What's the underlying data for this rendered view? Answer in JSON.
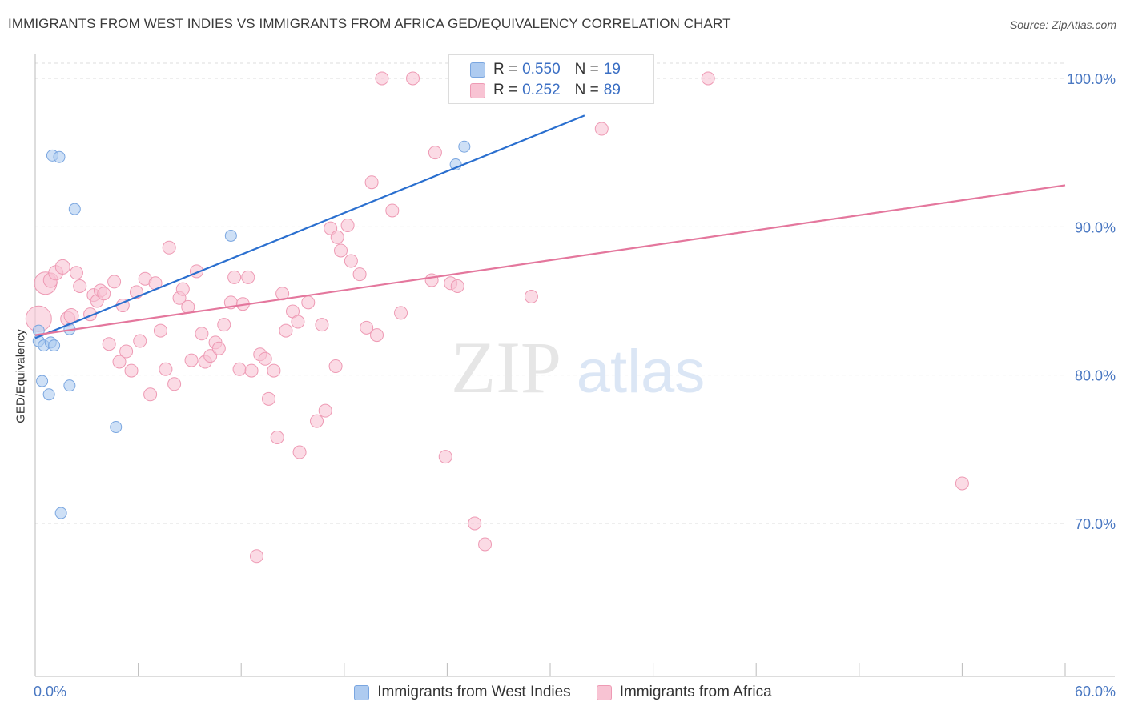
{
  "title": "IMMIGRANTS FROM WEST INDIES VS IMMIGRANTS FROM AFRICA GED/EQUIVALENCY CORRELATION CHART",
  "source": "Source: ZipAtlas.com",
  "watermark": {
    "zip": "ZIP",
    "atlas": "atlas"
  },
  "legend_top": [
    {
      "r_label": "R =",
      "r_value": "0.550",
      "n_label": "N =",
      "n_value": "19",
      "color": "#aecbf0",
      "border": "#7aa6e0"
    },
    {
      "r_label": "R =",
      "r_value": "0.252",
      "n_label": "N =",
      "n_value": "89",
      "color": "#f8c3d3",
      "border": "#ee9ab4"
    }
  ],
  "chart_data": {
    "type": "scatter",
    "xlabel": "",
    "ylabel": "GED/Equivalency",
    "xlim": [
      0,
      60
    ],
    "ylim": [
      60.5,
      101.5
    ],
    "x_ticks": [
      0,
      6,
      12,
      18,
      24,
      30,
      36,
      42,
      48,
      54,
      60
    ],
    "x_tick_labels": [
      {
        "value": 0,
        "label": "0.0%"
      },
      {
        "value": 60,
        "label": "60.0%"
      }
    ],
    "y_ticks": [
      {
        "value": 100,
        "label": "100.0%"
      },
      {
        "value": 90,
        "label": "90.0%"
      },
      {
        "value": 80,
        "label": "80.0%"
      },
      {
        "value": 70,
        "label": "70.0%"
      }
    ],
    "grid": "horizontal dashed",
    "legend_position": "bottom",
    "series": [
      {
        "name": "Immigrants from West Indies",
        "color": "#7aa6e0",
        "fill": "#aecbf0",
        "line_color": "#2a6fcf",
        "trend": {
          "x0": 0,
          "y0": 82.5,
          "x1": 32,
          "y1": 97.5
        },
        "points": [
          [
            0.2,
            83.0,
            7
          ],
          [
            0.2,
            82.3,
            7
          ],
          [
            0.5,
            82.0,
            7
          ],
          [
            0.4,
            79.6,
            7
          ],
          [
            0.8,
            78.7,
            7
          ],
          [
            0.9,
            82.2,
            7
          ],
          [
            1.0,
            94.8,
            7
          ],
          [
            1.1,
            82.0,
            7
          ],
          [
            1.4,
            94.7,
            7
          ],
          [
            1.5,
            70.7,
            7
          ],
          [
            2.0,
            83.1,
            7
          ],
          [
            2.0,
            79.3,
            7
          ],
          [
            2.3,
            91.2,
            7
          ],
          [
            4.7,
            76.5,
            7
          ],
          [
            11.4,
            89.4,
            7
          ],
          [
            24.5,
            94.2,
            7
          ],
          [
            25.0,
            95.4,
            7
          ],
          [
            30.6,
            99.6,
            7
          ],
          [
            32.5,
            99.8,
            7
          ]
        ]
      },
      {
        "name": "Immigrants from Africa",
        "color": "#ee9ab4",
        "fill": "#f8c3d3",
        "line_color": "#e4779d",
        "trend": {
          "x0": 0,
          "y0": 82.7,
          "x1": 60,
          "y1": 92.8
        },
        "points": [
          [
            0.2,
            83.8,
            16
          ],
          [
            0.6,
            86.2,
            14
          ],
          [
            0.9,
            86.4,
            9
          ],
          [
            1.2,
            86.9,
            9
          ],
          [
            1.6,
            87.3,
            9
          ],
          [
            1.9,
            83.8,
            9
          ],
          [
            2.1,
            84.0,
            9
          ],
          [
            2.4,
            86.9,
            8
          ],
          [
            2.6,
            86.0,
            8
          ],
          [
            3.2,
            84.1,
            8
          ],
          [
            3.4,
            85.4,
            8
          ],
          [
            3.6,
            85.0,
            8
          ],
          [
            3.8,
            85.7,
            8
          ],
          [
            4.0,
            85.5,
            8
          ],
          [
            4.3,
            82.1,
            8
          ],
          [
            4.6,
            86.3,
            8
          ],
          [
            4.9,
            80.9,
            8
          ],
          [
            5.1,
            84.7,
            8
          ],
          [
            5.3,
            81.6,
            8
          ],
          [
            5.6,
            80.3,
            8
          ],
          [
            5.9,
            85.6,
            8
          ],
          [
            6.1,
            82.3,
            8
          ],
          [
            6.4,
            86.5,
            8
          ],
          [
            6.7,
            78.7,
            8
          ],
          [
            7.0,
            86.2,
            8
          ],
          [
            7.3,
            83.0,
            8
          ],
          [
            7.6,
            80.4,
            8
          ],
          [
            7.8,
            88.6,
            8
          ],
          [
            8.1,
            79.4,
            8
          ],
          [
            8.4,
            85.2,
            8
          ],
          [
            8.6,
            85.8,
            8
          ],
          [
            8.9,
            84.6,
            8
          ],
          [
            9.1,
            81.0,
            8
          ],
          [
            9.4,
            87.0,
            8
          ],
          [
            9.7,
            82.8,
            8
          ],
          [
            9.9,
            80.9,
            8
          ],
          [
            10.2,
            81.3,
            8
          ],
          [
            10.5,
            82.2,
            8
          ],
          [
            10.7,
            81.8,
            8
          ],
          [
            11.0,
            83.4,
            8
          ],
          [
            11.4,
            84.9,
            8
          ],
          [
            11.6,
            86.6,
            8
          ],
          [
            11.9,
            80.4,
            8
          ],
          [
            12.1,
            84.8,
            8
          ],
          [
            12.4,
            86.6,
            8
          ],
          [
            12.6,
            80.3,
            8
          ],
          [
            13.1,
            81.4,
            8
          ],
          [
            13.4,
            81.1,
            8
          ],
          [
            13.6,
            78.4,
            8
          ],
          [
            13.9,
            80.3,
            8
          ],
          [
            14.1,
            75.8,
            8
          ],
          [
            14.4,
            85.5,
            8
          ],
          [
            14.6,
            83.0,
            8
          ],
          [
            15.0,
            84.3,
            8
          ],
          [
            15.3,
            83.6,
            8
          ],
          [
            15.4,
            74.8,
            8
          ],
          [
            15.9,
            84.9,
            8
          ],
          [
            16.4,
            76.9,
            8
          ],
          [
            16.7,
            83.4,
            8
          ],
          [
            16.9,
            77.6,
            8
          ],
          [
            17.2,
            89.9,
            8
          ],
          [
            17.6,
            89.3,
            8
          ],
          [
            17.5,
            80.6,
            8
          ],
          [
            17.8,
            88.4,
            8
          ],
          [
            18.2,
            90.1,
            8
          ],
          [
            18.4,
            87.7,
            8
          ],
          [
            18.9,
            86.8,
            8
          ],
          [
            19.3,
            83.2,
            8
          ],
          [
            19.6,
            93.0,
            8
          ],
          [
            19.9,
            82.7,
            8
          ],
          [
            20.2,
            100.0,
            8
          ],
          [
            20.8,
            91.1,
            8
          ],
          [
            21.3,
            84.2,
            8
          ],
          [
            22.0,
            100.0,
            8
          ],
          [
            23.1,
            86.4,
            8
          ],
          [
            23.3,
            95.0,
            8
          ],
          [
            23.9,
            74.5,
            8
          ],
          [
            24.2,
            86.2,
            8
          ],
          [
            24.6,
            86.0,
            8
          ],
          [
            25.1,
            100.0,
            8
          ],
          [
            25.6,
            70.0,
            8
          ],
          [
            26.2,
            68.6,
            8
          ],
          [
            28.9,
            85.3,
            8
          ],
          [
            33.0,
            96.6,
            8
          ],
          [
            35.0,
            100.0,
            8
          ],
          [
            39.2,
            100.0,
            8
          ],
          [
            54.0,
            72.7,
            8
          ],
          [
            12.9,
            67.8,
            8
          ],
          [
            27.6,
            99.3,
            8
          ]
        ]
      }
    ]
  },
  "legend_bottom": [
    {
      "label": "Immigrants from West Indies",
      "color": "#aecbf0",
      "border": "#7aa6e0"
    },
    {
      "label": "Immigrants from Africa",
      "color": "#f8c3d3",
      "border": "#ee9ab4"
    }
  ]
}
